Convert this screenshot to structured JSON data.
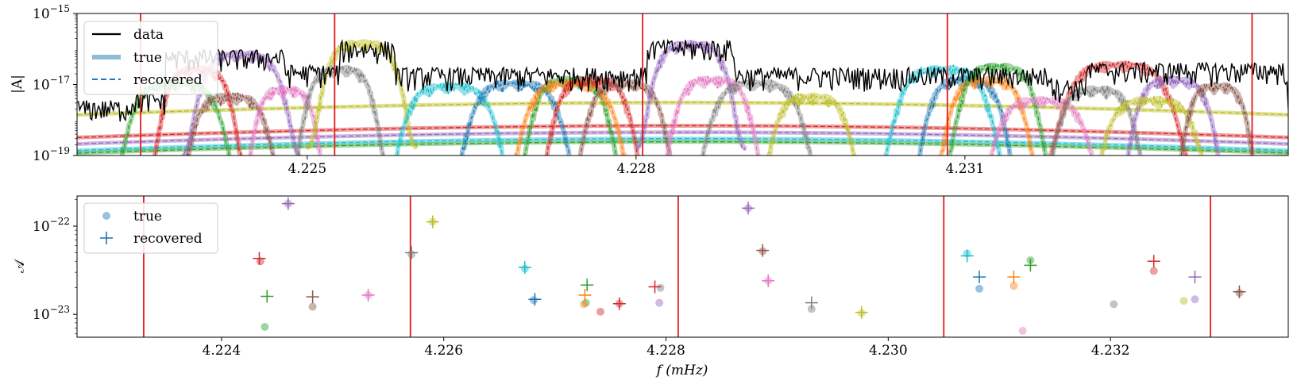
{
  "chart_data": [
    {
      "type": "line",
      "ylabel": "|A|",
      "yscale": "log",
      "ylim": [
        1e-19,
        1e-15
      ],
      "xlim": [
        4.2229,
        4.23395
      ],
      "xticks": [
        4.225,
        4.228,
        4.231
      ],
      "xtick_labels": [
        "4.225",
        "4.228",
        "4.231"
      ],
      "ytick_labels": [
        {
          "value": 1e-15,
          "base": "10",
          "exp": "−15"
        },
        {
          "value": 1e-17,
          "base": "10",
          "exp": "−17"
        },
        {
          "value": 1e-19,
          "base": "10",
          "exp": "−19"
        }
      ],
      "red_lines_x": [
        4.22348,
        4.22525,
        4.22806,
        4.23084,
        4.23362
      ],
      "legend": [
        "data",
        "true",
        "recovered"
      ],
      "legend_position": "upper left",
      "data_segments": [
        {
          "x0": 4.2229,
          "x1": 4.2234,
          "level": 3e-18
        },
        {
          "x0": 4.2234,
          "x1": 4.2237,
          "level": 5e-18
        },
        {
          "x0": 4.2237,
          "x1": 4.2248,
          "level": 8e-17
        },
        {
          "x0": 4.2248,
          "x1": 4.2253,
          "level": 3e-17
        },
        {
          "x0": 4.2253,
          "x1": 4.2258,
          "level": 1.4e-16
        },
        {
          "x0": 4.2258,
          "x1": 4.2281,
          "level": 2.5e-17
        },
        {
          "x0": 4.2281,
          "x1": 4.2289,
          "level": 1.5e-16
        },
        {
          "x0": 4.2289,
          "x1": 4.2306,
          "level": 2.5e-17
        },
        {
          "x0": 4.2306,
          "x1": 4.2318,
          "level": 2.5e-17
        },
        {
          "x0": 4.2318,
          "x1": 4.2321,
          "level": 1.2e-17
        },
        {
          "x0": 4.2321,
          "x1": 4.23395,
          "level": 3.5e-17
        }
      ],
      "sources": [
        {
          "f": 4.224,
          "amp": 3e-17,
          "w": 0.00045,
          "color": "#d62728"
        },
        {
          "f": 4.2244,
          "amp": 8e-17,
          "w": 0.00055,
          "color": "#9467bd"
        },
        {
          "f": 4.2238,
          "amp": 1.2e-17,
          "w": 0.0006,
          "color": "#2ca02c"
        },
        {
          "f": 4.2243,
          "amp": 5e-18,
          "w": 0.0005,
          "color": "#8c564b"
        },
        {
          "f": 4.2248,
          "amp": 8e-18,
          "w": 0.0004,
          "color": "#e377c2"
        },
        {
          "f": 4.2255,
          "amp": 1.6e-16,
          "w": 0.0005,
          "color": "#bcbd22"
        },
        {
          "f": 4.2253,
          "amp": 3e-17,
          "w": 0.00045,
          "color": "#7f7f7f"
        },
        {
          "f": 4.2263,
          "amp": 1e-17,
          "w": 0.0006,
          "color": "#17becf"
        },
        {
          "f": 4.2269,
          "amp": 1.2e-17,
          "w": 0.0006,
          "color": "#1f77b4"
        },
        {
          "f": 4.2274,
          "amp": 1.5e-17,
          "w": 0.0005,
          "color": "#2ca02c"
        },
        {
          "f": 4.2274,
          "amp": 1.2e-17,
          "w": 0.0006,
          "color": "#ff7f0e"
        },
        {
          "f": 4.2276,
          "amp": 1.5e-17,
          "w": 0.0005,
          "color": "#d62728"
        },
        {
          "f": 4.2279,
          "amp": 1.2e-17,
          "w": 0.0005,
          "color": "#8c564b"
        },
        {
          "f": 4.2285,
          "amp": 1.5e-16,
          "w": 0.0005,
          "color": "#9467bd"
        },
        {
          "f": 4.2287,
          "amp": 1.5e-17,
          "w": 0.0005,
          "color": "#e377c2"
        },
        {
          "f": 4.2291,
          "amp": 1.2e-17,
          "w": 0.0006,
          "color": "#7f7f7f"
        },
        {
          "f": 4.2296,
          "amp": 5e-18,
          "w": 0.0005,
          "color": "#bcbd22"
        },
        {
          "f": 4.2308,
          "amp": 3e-17,
          "w": 0.0006,
          "color": "#17becf"
        },
        {
          "f": 4.231,
          "amp": 1.5e-17,
          "w": 0.0005,
          "color": "#1f77b4"
        },
        {
          "f": 4.2312,
          "amp": 1.5e-17,
          "w": 0.0005,
          "color": "#ff7f0e"
        },
        {
          "f": 4.2313,
          "amp": 3.5e-17,
          "w": 0.0005,
          "color": "#2ca02c"
        },
        {
          "f": 4.2317,
          "amp": 4e-18,
          "w": 0.0006,
          "color": "#e377c2"
        },
        {
          "f": 4.2324,
          "amp": 4e-17,
          "w": 0.0007,
          "color": "#d62728"
        },
        {
          "f": 4.2322,
          "amp": 8e-18,
          "w": 0.0005,
          "color": "#7f7f7f"
        },
        {
          "f": 4.2329,
          "amp": 1.5e-17,
          "w": 0.0005,
          "color": "#9467bd"
        },
        {
          "f": 4.2327,
          "amp": 4e-18,
          "w": 0.0006,
          "color": "#bcbd22"
        },
        {
          "f": 4.2333,
          "amp": 1e-17,
          "w": 0.0004,
          "color": "#8c564b"
        }
      ],
      "broad_curves": [
        {
          "color": "#bcbd22",
          "a": 1.3e-18,
          "b": 2.5e-18
        },
        {
          "color": "#d62728",
          "a": 3e-19,
          "b": 5e-19
        },
        {
          "color": "#9467bd",
          "a": 2e-19,
          "b": 3e-19
        },
        {
          "color": "#17becf",
          "a": 1.3e-19,
          "b": 2.2e-19
        },
        {
          "color": "#2ca02c",
          "a": 1.1e-19,
          "b": 1.5e-19
        }
      ]
    },
    {
      "type": "scatter",
      "xlabel": "f (mHz)",
      "ylabel": "𝒜",
      "yscale": "log",
      "ylim": [
        5.5e-24,
        2.2e-22
      ],
      "xlim": [
        4.2227,
        4.2336
      ],
      "xticks": [
        4.224,
        4.226,
        4.228,
        4.23,
        4.232
      ],
      "xtick_labels": [
        "4.224",
        "4.226",
        "4.228",
        "4.230",
        "4.232"
      ],
      "ytick_labels": [
        {
          "value": 1e-22,
          "base": "10",
          "exp": "−22"
        },
        {
          "value": 1e-23,
          "base": "10",
          "exp": "−23"
        }
      ],
      "red_lines_x": [
        4.2233,
        4.2257,
        4.22811,
        4.2305,
        4.2329
      ],
      "legend": [
        "true",
        "recovered"
      ],
      "legend_position": "upper left",
      "true_points": [
        {
          "x": 4.22435,
          "y": 4e-23,
          "color": "#d62728"
        },
        {
          "x": 4.22439,
          "y": 7.2e-24,
          "color": "#2ca02c"
        },
        {
          "x": 4.2246,
          "y": 1.8e-22,
          "color": "#9467bd"
        },
        {
          "x": 4.22482,
          "y": 1.22e-23,
          "color": "#8c564b"
        },
        {
          "x": 4.22532,
          "y": 1.65e-23,
          "color": "#e377c2"
        },
        {
          "x": 4.22571,
          "y": 4.8e-23,
          "color": "#7f7f7f"
        },
        {
          "x": 4.2259,
          "y": 1.12e-22,
          "color": "#bcbd22"
        },
        {
          "x": 4.22673,
          "y": 3.3e-23,
          "color": "#17becf"
        },
        {
          "x": 4.22681,
          "y": 1.45e-23,
          "color": "#1f77b4"
        },
        {
          "x": 4.22728,
          "y": 1.35e-23,
          "color": "#2ca02c"
        },
        {
          "x": 4.22726,
          "y": 1.3e-23,
          "color": "#ff7f0e"
        },
        {
          "x": 4.22741,
          "y": 1.07e-23,
          "color": "#d62728"
        },
        {
          "x": 4.22758,
          "y": 1.32e-23,
          "color": "#d62728"
        },
        {
          "x": 4.22795,
          "y": 2e-23,
          "color": "#7f7f7f"
        },
        {
          "x": 4.22794,
          "y": 1.35e-23,
          "color": "#9467bd"
        },
        {
          "x": 4.22874,
          "y": 1.6e-22,
          "color": "#9467bd"
        },
        {
          "x": 4.22887,
          "y": 5.2e-23,
          "color": "#8c564b"
        },
        {
          "x": 4.22892,
          "y": 2.4e-23,
          "color": "#e377c2"
        },
        {
          "x": 4.22931,
          "y": 1.15e-23,
          "color": "#7f7f7f"
        },
        {
          "x": 4.22976,
          "y": 1.03e-23,
          "color": "#bcbd22"
        },
        {
          "x": 4.23071,
          "y": 4.9e-23,
          "color": "#17becf"
        },
        {
          "x": 4.23082,
          "y": 1.95e-23,
          "color": "#1f77b4"
        },
        {
          "x": 4.23113,
          "y": 2.1e-23,
          "color": "#ff7f0e"
        },
        {
          "x": 4.23121,
          "y": 6.5e-24,
          "color": "#e377c2"
        },
        {
          "x": 4.23128,
          "y": 4.1e-23,
          "color": "#2ca02c"
        },
        {
          "x": 4.23203,
          "y": 1.3e-23,
          "color": "#7f7f7f"
        },
        {
          "x": 4.23239,
          "y": 3.1e-23,
          "color": "#d62728"
        },
        {
          "x": 4.23266,
          "y": 1.42e-23,
          "color": "#bcbd22"
        },
        {
          "x": 4.23276,
          "y": 1.48e-23,
          "color": "#9467bd"
        },
        {
          "x": 4.23316,
          "y": 1.75e-23,
          "color": "#8c564b"
        }
      ],
      "recovered_points": [
        {
          "x": 4.22434,
          "y": 4.3e-23,
          "color": "#d62728"
        },
        {
          "x": 4.22441,
          "y": 1.6e-23,
          "color": "#2ca02c"
        },
        {
          "x": 4.2246,
          "y": 1.8e-22,
          "color": "#9467bd"
        },
        {
          "x": 4.22482,
          "y": 1.58e-23,
          "color": "#8c564b"
        },
        {
          "x": 4.22532,
          "y": 1.65e-23,
          "color": "#e377c2"
        },
        {
          "x": 4.22571,
          "y": 5e-23,
          "color": "#7f7f7f"
        },
        {
          "x": 4.2259,
          "y": 1.12e-22,
          "color": "#bcbd22"
        },
        {
          "x": 4.22673,
          "y": 3.4e-23,
          "color": "#17becf"
        },
        {
          "x": 4.22682,
          "y": 1.48e-23,
          "color": "#1f77b4"
        },
        {
          "x": 4.22729,
          "y": 2.15e-23,
          "color": "#2ca02c"
        },
        {
          "x": 4.22727,
          "y": 1.65e-23,
          "color": "#ff7f0e"
        },
        {
          "x": 4.22758,
          "y": 1.32e-23,
          "color": "#d62728"
        },
        {
          "x": 4.2279,
          "y": 2.05e-23,
          "color": "#d62728"
        },
        {
          "x": 4.22874,
          "y": 1.6e-22,
          "color": "#9467bd"
        },
        {
          "x": 4.22887,
          "y": 5.3e-23,
          "color": "#8c564b"
        },
        {
          "x": 4.22892,
          "y": 2.4e-23,
          "color": "#e377c2"
        },
        {
          "x": 4.22931,
          "y": 1.35e-23,
          "color": "#7f7f7f"
        },
        {
          "x": 4.22976,
          "y": 1.05e-23,
          "color": "#bcbd22"
        },
        {
          "x": 4.23071,
          "y": 4.6e-23,
          "color": "#17becf"
        },
        {
          "x": 4.23082,
          "y": 2.65e-23,
          "color": "#1f77b4"
        },
        {
          "x": 4.23113,
          "y": 2.65e-23,
          "color": "#ff7f0e"
        },
        {
          "x": 4.23128,
          "y": 3.6e-23,
          "color": "#2ca02c"
        },
        {
          "x": 4.23239,
          "y": 4e-23,
          "color": "#d62728"
        },
        {
          "x": 4.23276,
          "y": 2.65e-23,
          "color": "#9467bd"
        },
        {
          "x": 4.23316,
          "y": 1.8e-23,
          "color": "#8c564b"
        }
      ]
    }
  ]
}
